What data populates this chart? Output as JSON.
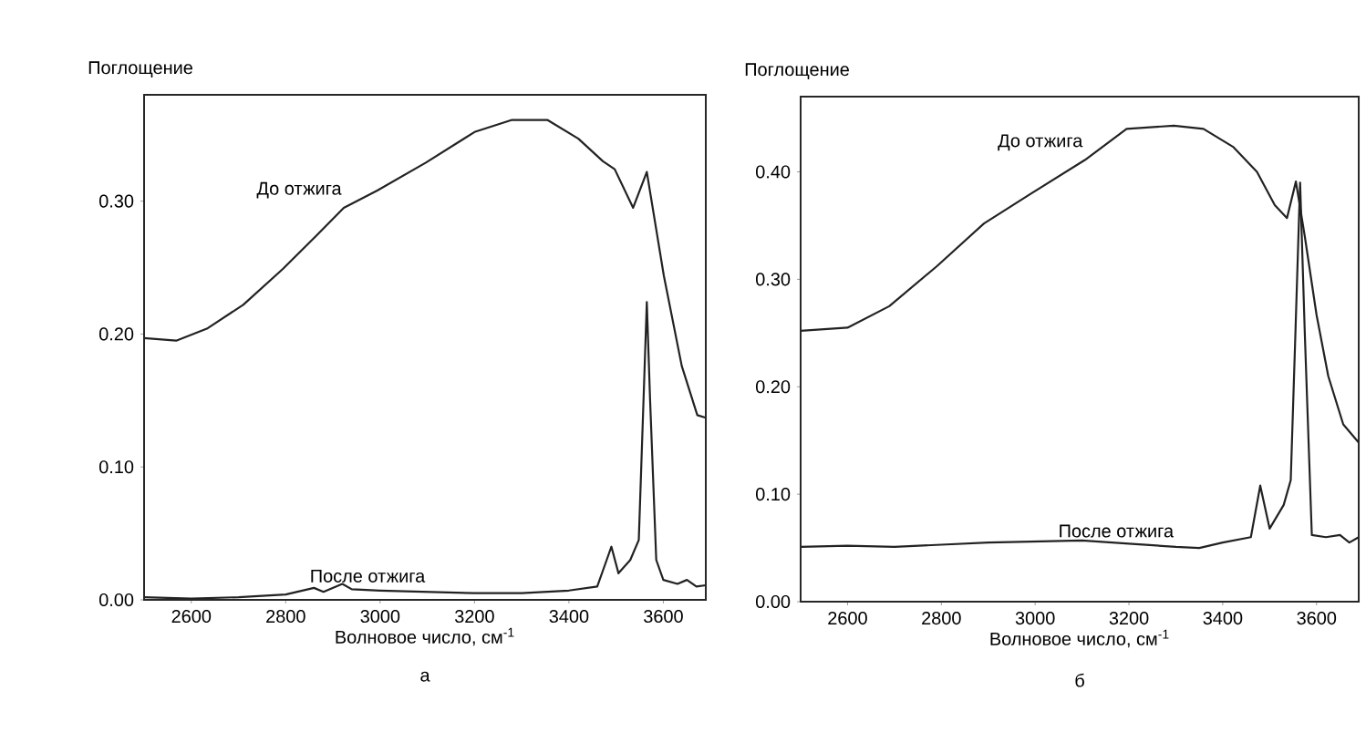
{
  "chart_data": [
    {
      "type": "line",
      "ylabel": "Поглощение",
      "xlabel": "Волновое число, см$^{-1}$",
      "annotations": [
        "а"
      ],
      "xlim": [
        2500,
        3690
      ],
      "ylim": [
        0,
        0.38
      ],
      "xticks": [
        2600,
        2800,
        3000,
        3200,
        3400,
        3600
      ],
      "yticks": [
        {
          "value": 0,
          "label": "0.00"
        },
        {
          "value": 0.1,
          "label": "0.10"
        },
        {
          "value": 0.2,
          "label": "0.20"
        },
        {
          "value": 0.3,
          "label": "0.30"
        }
      ],
      "grid": false,
      "legend": false,
      "marker": "none",
      "line_style": "solid",
      "series": [
        {
          "name": "До отжига",
          "color": "#222222",
          "x": [
            2500,
            2568,
            2633,
            2710,
            2794,
            2865,
            2923,
            2994,
            3097,
            3200,
            3278,
            3355,
            3420,
            3472,
            3497,
            3536,
            3565,
            3601,
            3639,
            3672,
            3690
          ],
          "values": [
            0.197,
            0.195,
            0.204,
            0.222,
            0.249,
            0.274,
            0.295,
            0.308,
            0.329,
            0.352,
            0.361,
            0.361,
            0.347,
            0.33,
            0.324,
            0.295,
            0.322,
            0.244,
            0.176,
            0.139,
            0.137
          ]
        },
        {
          "name": "После отжига",
          "color": "#222222",
          "x": [
            2500,
            2600,
            2700,
            2800,
            2860,
            2880,
            2920,
            2940,
            3000,
            3100,
            3200,
            3300,
            3400,
            3460,
            3480,
            3490,
            3505,
            3530,
            3548,
            3558,
            3565,
            3572,
            3585,
            3600,
            3630,
            3650,
            3670,
            3690
          ],
          "values": [
            0.002,
            0.001,
            0.002,
            0.004,
            0.009,
            0.006,
            0.012,
            0.008,
            0.007,
            0.006,
            0.005,
            0.005,
            0.007,
            0.01,
            0.03,
            0.04,
            0.02,
            0.03,
            0.045,
            0.15,
            0.224,
            0.15,
            0.03,
            0.015,
            0.012,
            0.015,
            0.01,
            0.011
          ]
        }
      ]
    },
    {
      "type": "line",
      "ylabel": "Поглощение",
      "xlabel": "Волновое число, см$^{-1}$",
      "annotations": [
        "б"
      ],
      "xlim": [
        2500,
        3690
      ],
      "ylim": [
        0,
        0.47
      ],
      "xticks": [
        2600,
        2800,
        3000,
        3200,
        3400,
        3600
      ],
      "yticks": [
        {
          "value": 0,
          "label": "0.00"
        },
        {
          "value": 0.1,
          "label": "0.10"
        },
        {
          "value": 0.2,
          "label": "0.20"
        },
        {
          "value": 0.3,
          "label": "0.30"
        },
        {
          "value": 0.4,
          "label": "0.40"
        }
      ],
      "grid": false,
      "legend": false,
      "marker": "none",
      "line_style": "solid",
      "series": [
        {
          "name": "До отжига",
          "color": "#222222",
          "x": [
            2500,
            2600,
            2689,
            2790,
            2891,
            2992,
            3106,
            3195,
            3296,
            3359,
            3423,
            3473,
            3511,
            3537,
            3556,
            3575,
            3600,
            3625,
            3657,
            3690
          ],
          "values": [
            0.252,
            0.255,
            0.275,
            0.312,
            0.352,
            0.38,
            0.411,
            0.44,
            0.443,
            0.44,
            0.423,
            0.4,
            0.369,
            0.357,
            0.391,
            0.34,
            0.267,
            0.21,
            0.165,
            0.148
          ]
        },
        {
          "name": "После отжига",
          "color": "#222222",
          "x": [
            2500,
            2600,
            2700,
            2800,
            2900,
            3000,
            3100,
            3200,
            3300,
            3350,
            3400,
            3460,
            3480,
            3500,
            3530,
            3545,
            3555,
            3565,
            3575,
            3590,
            3620,
            3650,
            3670,
            3690
          ],
          "values": [
            0.051,
            0.052,
            0.051,
            0.053,
            0.055,
            0.056,
            0.057,
            0.054,
            0.051,
            0.05,
            0.055,
            0.06,
            0.108,
            0.068,
            0.09,
            0.113,
            0.25,
            0.39,
            0.25,
            0.062,
            0.06,
            0.062,
            0.055,
            0.06
          ]
        }
      ]
    }
  ]
}
